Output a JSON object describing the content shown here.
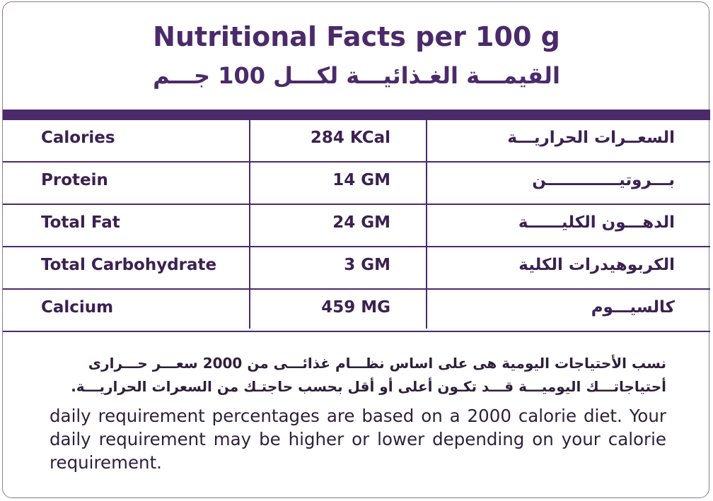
{
  "header": {
    "title_en": "Nutritional Facts per 100 g",
    "title_ar": "القيمـــة الغـذائيـــة لكـــل 100 جـــم"
  },
  "table": {
    "rows": [
      [
        "Calories",
        "284 KCal",
        "السعــرات الحراريـــة"
      ],
      [
        "Protein",
        "14 GM",
        "بـــروتيـــــــــــــن"
      ],
      [
        "Total Fat",
        "24 GM",
        "الدهـــون الكليــــــة"
      ],
      [
        "Total Carbohydrate",
        "3 GM",
        "الكربوهيدرات الكلية"
      ],
      [
        "Calcium",
        "459 MG",
        "كالسيـــوم"
      ]
    ]
  },
  "note": {
    "ar": [
      "نسب الأحتياجات اليومية هى على اساس نظـــام غذائـــى من 2000 سعـــر حـــرارى",
      "أحتياجاتـــك اليوميـــة قـــد تكـون أعلى أو أقل بحسب حاجتـك من السعرات الحراريـــة."
    ],
    "en": "daily requirement percentages are based on a 2000 calorie diet. Your daily requirement may be higher or lower depending on your calorie requirement."
  }
}
